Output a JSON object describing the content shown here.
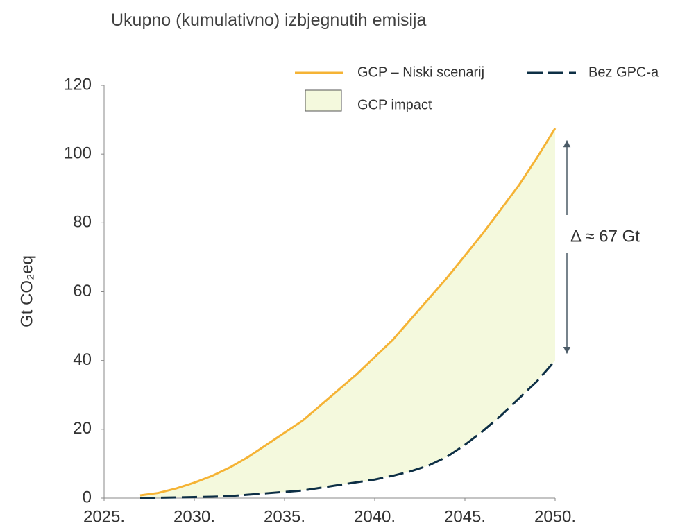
{
  "chart_data": {
    "type": "line",
    "title": "Ukupno (kumulativno) izbjegnutih emisija",
    "ylabel": "Gt CO₂eq",
    "x": [
      2027,
      2028,
      2029,
      2030,
      2031,
      2032,
      2033,
      2034,
      2035,
      2036,
      2037,
      2038,
      2039,
      2040,
      2041,
      2042,
      2043,
      2044,
      2045,
      2046,
      2047,
      2048,
      2049,
      2050
    ],
    "series": [
      {
        "name": "GCP – Niski scenarij",
        "color": "#f5b335",
        "dash": false,
        "values": [
          0.8,
          1.5,
          2.8,
          4.5,
          6.5,
          9,
          12,
          15.5,
          19,
          22.5,
          27,
          31.5,
          36,
          41,
          46,
          52,
          58,
          64,
          70.5,
          77,
          84,
          91,
          99,
          107.5
        ]
      },
      {
        "name": "Bez GPC-a",
        "color": "#0d2f45",
        "dash": true,
        "values": [
          0,
          0.1,
          0.2,
          0.3,
          0.4,
          0.6,
          1,
          1.4,
          1.8,
          2.2,
          3,
          3.8,
          4.6,
          5.4,
          6.5,
          7.8,
          9.5,
          12,
          15.5,
          19.5,
          24,
          29,
          34,
          40
        ]
      }
    ],
    "area_label": "GCP impact",
    "area_color": "#f4f9dd",
    "annotation": "Δ ≈ 67 Gt",
    "xlim": [
      2025,
      2050
    ],
    "xticks": [
      {
        "value": 2025,
        "label": "2025."
      },
      {
        "value": 2030,
        "label": "2030."
      },
      {
        "value": 2035,
        "label": "2035."
      },
      {
        "value": 2040,
        "label": "2040."
      },
      {
        "value": 2045,
        "label": "2045."
      },
      {
        "value": 2050,
        "label": "2050."
      }
    ],
    "ylim": [
      0,
      120
    ],
    "yticks": [
      0,
      20,
      40,
      60,
      80,
      100,
      120
    ]
  }
}
